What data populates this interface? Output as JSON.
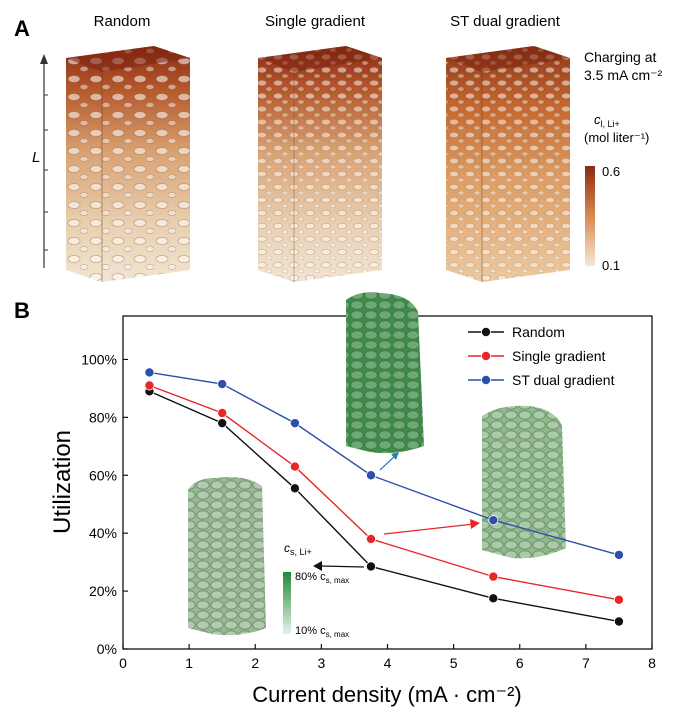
{
  "panel_a": {
    "label": "A",
    "columns": [
      "Random",
      "Single gradient",
      "ST dual gradient"
    ],
    "axis_label": "L",
    "charging_line1": "Charging at",
    "charging_line2": "3.5 mA cm⁻²",
    "colorbar_label1": "c",
    "colorbar_sub": "l, Li+",
    "colorbar_label2": "(mol liter⁻¹)",
    "colorbar_max": "0.6",
    "colorbar_min": "0.1",
    "colors": {
      "high": "#8b2a12",
      "mid": "#d98a4f",
      "low": "#f4e8d8"
    }
  },
  "panel_b": {
    "label": "B",
    "inset_label": "c",
    "inset_sub": "s, Li+",
    "inset_max": "80% c",
    "inset_max_sub": "s, max",
    "inset_min": "10% c",
    "inset_min_sub": "s, max",
    "inset_colors": {
      "high": "#1f8a3a",
      "low": "#e6f3e6"
    }
  },
  "chart_data": {
    "type": "line",
    "xlabel": "Current density (mA · cm⁻²)",
    "ylabel": "Utilization",
    "xlim": [
      0,
      8
    ],
    "ylim": [
      0,
      1.15
    ],
    "x_ticks": [
      "0",
      "1",
      "2",
      "3",
      "4",
      "5",
      "6",
      "7",
      "8"
    ],
    "y_ticks": [
      "0%",
      "20%",
      "40%",
      "60%",
      "80%",
      "100%"
    ],
    "legend_position": "top-right",
    "series": [
      {
        "name": "Random",
        "color": "#111111",
        "x": [
          0.4,
          1.5,
          2.6,
          3.75,
          5.6,
          7.5
        ],
        "y": [
          0.89,
          0.78,
          0.555,
          0.285,
          0.175,
          0.095
        ]
      },
      {
        "name": "Single gradient",
        "color": "#e8262a",
        "x": [
          0.4,
          1.5,
          2.6,
          3.75,
          5.6,
          7.5
        ],
        "y": [
          0.91,
          0.815,
          0.63,
          0.38,
          0.25,
          0.17
        ]
      },
      {
        "name": "ST dual gradient",
        "color": "#2b4faa",
        "x": [
          0.4,
          1.5,
          2.6,
          3.75,
          5.6,
          7.5
        ],
        "y": [
          0.955,
          0.915,
          0.78,
          0.6,
          0.445,
          0.325
        ]
      }
    ]
  }
}
